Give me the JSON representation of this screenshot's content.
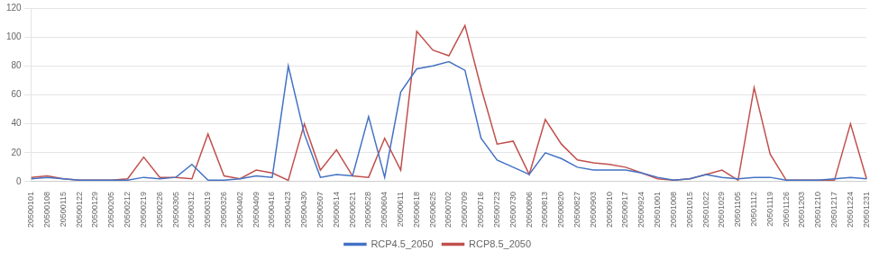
{
  "chart_data": {
    "type": "line",
    "categories": [
      "20500101",
      "20500108",
      "20500115",
      "20500122",
      "20500129",
      "20500205",
      "20500212",
      "20500219",
      "20500226",
      "20500305",
      "20500312",
      "20500319",
      "20500326",
      "20500402",
      "20500409",
      "20500416",
      "20500423",
      "20500430",
      "20500507",
      "20500514",
      "20500521",
      "20500528",
      "20500604",
      "20500611",
      "20500618",
      "20500625",
      "20500702",
      "20500709",
      "20500716",
      "20500723",
      "20500730",
      "20500806",
      "20500813",
      "20500820",
      "20500827",
      "20500903",
      "20500910",
      "20500917",
      "20500924",
      "20501001",
      "20501008",
      "20501015",
      "20501022",
      "20501029",
      "20501105",
      "20501112",
      "20501119",
      "20501126",
      "20501203",
      "20501210",
      "20501217",
      "20501224",
      "20501231"
    ],
    "series": [
      {
        "name": "RCP4.5_2050",
        "color": "#4472C4",
        "values": [
          2,
          3,
          2,
          1,
          1,
          1,
          1,
          3,
          2,
          3,
          12,
          1,
          1,
          2,
          4,
          3,
          80,
          33,
          3,
          5,
          4,
          45,
          3,
          62,
          78,
          80,
          83,
          77,
          30,
          15,
          10,
          5,
          20,
          16,
          10,
          8,
          8,
          8,
          6,
          3,
          1,
          2,
          5,
          3,
          2,
          3,
          3,
          1,
          1,
          1,
          2,
          3,
          2
        ]
      },
      {
        "name": "RCP8.5_2050",
        "color": "#C0504D",
        "values": [
          3,
          4,
          2,
          1,
          1,
          1,
          2,
          17,
          3,
          3,
          2,
          33,
          4,
          2,
          8,
          6,
          1,
          40,
          8,
          22,
          4,
          3,
          30,
          8,
          104,
          91,
          87,
          108,
          65,
          26,
          28,
          5,
          43,
          26,
          15,
          13,
          12,
          10,
          6,
          2,
          1,
          2,
          5,
          8,
          1,
          65,
          19,
          1,
          1,
          1,
          1,
          40,
          2
        ]
      }
    ],
    "ylim": [
      0,
      120
    ],
    "yticks": [
      0,
      20,
      40,
      60,
      80,
      100,
      120
    ],
    "grid": true,
    "legend": "bottom"
  }
}
